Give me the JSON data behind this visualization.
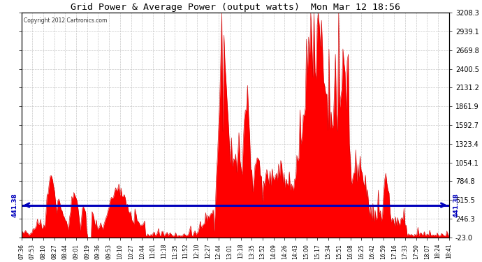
{
  "title": "Grid Power & Average Power (output watts)  Mon Mar 12 18:56",
  "copyright": "Copyright 2012 Cartronics.com",
  "y_min": -23.0,
  "y_max": 3208.3,
  "y_ticks": [
    -23.0,
    246.3,
    515.5,
    784.8,
    1054.1,
    1323.4,
    1592.7,
    1861.9,
    2131.2,
    2400.5,
    2669.8,
    2939.1,
    3208.3
  ],
  "avg_power": 441.38,
  "avg_label": "441.38",
  "background_color": "#ffffff",
  "fill_color": "#ff0000",
  "line_color": "#cc0000",
  "avg_line_color": "#0000bb",
  "grid_color": "#bbbbbb",
  "title_color": "#000000",
  "x_labels": [
    "07:36",
    "07:53",
    "08:10",
    "08:27",
    "08:44",
    "09:01",
    "09:19",
    "09:36",
    "09:53",
    "10:10",
    "10:27",
    "10:44",
    "11:01",
    "11:18",
    "11:35",
    "11:52",
    "12:10",
    "12:27",
    "12:44",
    "13:01",
    "13:18",
    "13:35",
    "13:52",
    "14:09",
    "14:26",
    "14:43",
    "15:00",
    "15:17",
    "15:34",
    "15:51",
    "16:08",
    "16:25",
    "16:42",
    "16:59",
    "17:16",
    "17:33",
    "17:50",
    "18:07",
    "18:24",
    "18:41"
  ]
}
